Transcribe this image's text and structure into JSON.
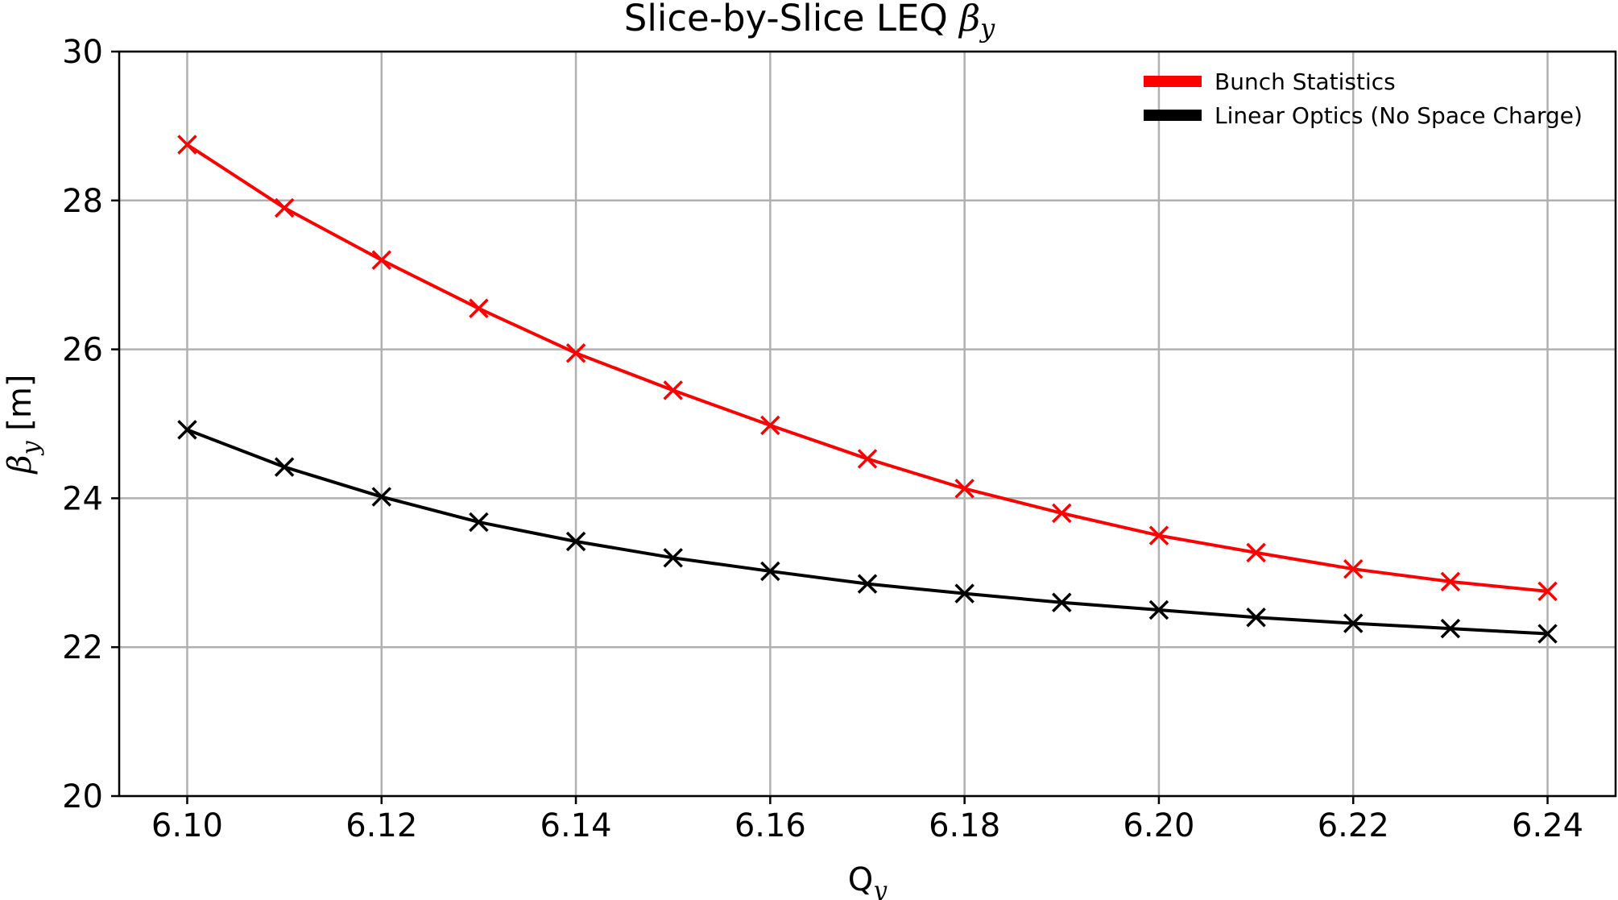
{
  "chart_data": {
    "type": "line",
    "title": "Slice-by-Slice LEQ ",
    "title_symbol": "β",
    "title_symbol_sub": "y",
    "xlabel": "Q",
    "xlabel_sub": "y",
    "ylabel": "β",
    "ylabel_sub": "y",
    "ylabel_unit": " [m]",
    "xlim": [
      6.093,
      6.247
    ],
    "ylim": [
      20,
      30
    ],
    "x": [
      6.1,
      6.11,
      6.12,
      6.13,
      6.14,
      6.15,
      6.16,
      6.17,
      6.18,
      6.19,
      6.2,
      6.21,
      6.22,
      6.23,
      6.24
    ],
    "xticks": [
      "6.10",
      "6.12",
      "6.14",
      "6.16",
      "6.18",
      "6.20",
      "6.22",
      "6.24"
    ],
    "yticks": [
      "20",
      "22",
      "24",
      "26",
      "28",
      "30"
    ],
    "grid": true,
    "legend_position": "top-right",
    "marker": "x",
    "series": [
      {
        "name": "Bunch Statistics",
        "color": "#ff0000",
        "values": [
          28.75,
          27.9,
          27.2,
          26.55,
          25.95,
          25.45,
          24.98,
          24.53,
          24.13,
          23.8,
          23.5,
          23.27,
          23.05,
          22.88,
          22.75
        ]
      },
      {
        "name": "Linear Optics (No Space Charge)",
        "color": "#000000",
        "values": [
          24.92,
          24.42,
          24.02,
          23.68,
          23.42,
          23.2,
          23.02,
          22.85,
          22.72,
          22.6,
          22.5,
          22.4,
          22.32,
          22.25,
          22.18
        ]
      }
    ]
  }
}
